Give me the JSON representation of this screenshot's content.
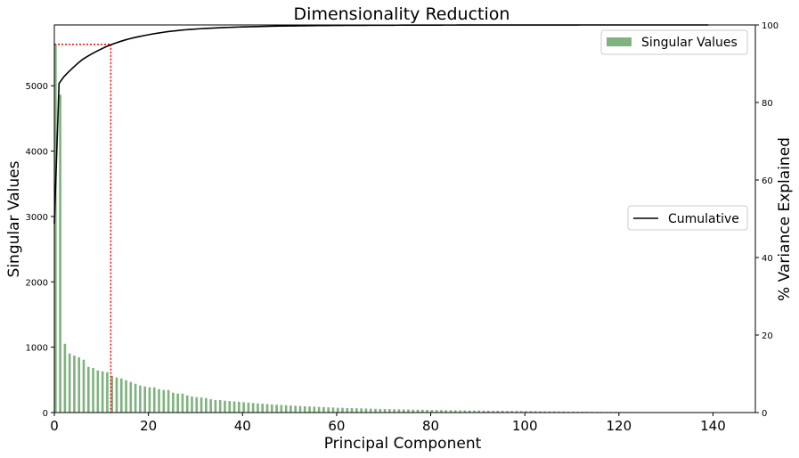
{
  "chart_data": {
    "type": "bar",
    "title": "Dimensionality Reduction",
    "xlabel": "Principal Component",
    "ylabel": "Singular Values",
    "ylabel_right": "% Variance Explained",
    "xlim": [
      0,
      149
    ],
    "ylim": [
      0,
      5930
    ],
    "ylim_right": [
      0,
      100
    ],
    "xticks": [
      0,
      20,
      40,
      60,
      80,
      100,
      120,
      140
    ],
    "yticks": [
      0,
      1000,
      2000,
      3000,
      4000,
      5000
    ],
    "yticks_right": [
      0,
      20,
      40,
      60,
      80,
      100
    ],
    "bar_color": "#7fb27f",
    "line_color": "#000000",
    "threshold_color": "#ff0000",
    "threshold_percent": 95,
    "threshold_component": 12,
    "legend_bars": {
      "label": "Singular Values",
      "placement": "top-right"
    },
    "legend_line": {
      "label": "Cumulative",
      "placement": "center-right"
    },
    "series": [
      {
        "name": "Singular Values",
        "type": "bar",
        "values": [
          5640,
          4864,
          1053,
          903,
          872,
          845,
          808,
          699,
          681,
          644,
          631,
          617,
          563,
          536,
          522,
          495,
          467,
          440,
          413,
          399,
          386,
          385,
          358,
          345,
          345,
          304,
          290,
          290,
          263,
          245,
          236,
          231,
          222,
          204,
          191,
          191,
          181,
          175,
          170,
          165,
          158,
          152,
          146,
          140,
          135,
          130,
          125,
          120,
          116,
          112,
          108,
          104,
          100,
          96,
          93,
          90,
          86,
          83,
          80,
          77,
          74,
          72,
          70,
          68,
          66,
          64,
          62,
          60,
          58,
          56,
          55,
          53,
          51,
          50,
          48,
          47,
          45,
          44,
          43,
          41,
          40,
          39,
          38,
          37,
          36,
          35,
          34,
          33,
          32,
          31,
          30,
          29,
          28,
          27,
          27,
          26,
          25,
          25,
          24,
          23,
          22,
          22,
          21,
          20,
          19,
          19,
          18,
          17,
          16,
          14,
          14,
          13,
          13,
          12,
          12,
          11,
          11,
          10,
          10,
          10,
          9,
          9,
          9,
          8,
          8,
          8,
          7,
          7,
          7,
          6,
          6,
          6,
          6,
          5,
          5,
          5,
          5,
          5,
          4,
          4
        ]
      },
      {
        "name": "Cumulative",
        "type": "line",
        "derived_from": "cumulative sum of squared singular values, percent"
      }
    ]
  }
}
